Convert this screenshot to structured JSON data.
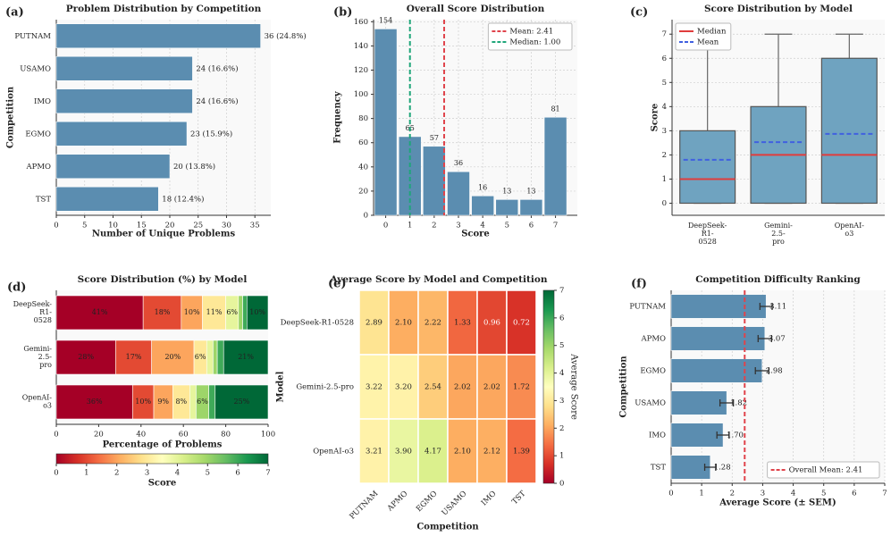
{
  "chart_data": [
    {
      "type": "bar",
      "orientation": "horizontal",
      "panel": "(a)",
      "title": "Problem Distribution by Competition",
      "xlabel": "Number of Unique Problems",
      "ylabel": "Competition",
      "categories": [
        "PUTNAM",
        "USAMO",
        "IMO",
        "EGMO",
        "APMO",
        "TST"
      ],
      "values": [
        36,
        24,
        24,
        23,
        20,
        18
      ],
      "value_labels": [
        "36 (24.8%)",
        "24 (16.6%)",
        "24 (16.6%)",
        "23 (15.9%)",
        "20 (13.8%)",
        "18 (12.4%)"
      ],
      "color": "#5b8db0",
      "xlim": [
        0,
        37.8
      ],
      "xticks": [
        0,
        5,
        10,
        15,
        20,
        25,
        30,
        35
      ],
      "grid": true
    },
    {
      "type": "bar",
      "orientation": "vertical",
      "panel": "(b)",
      "title": "Overall Score Distribution",
      "xlabel": "Score",
      "ylabel": "Frequency",
      "x": [
        0,
        1,
        2,
        3,
        4,
        5,
        6,
        7
      ],
      "values": [
        154,
        65,
        57,
        36,
        16,
        13,
        13,
        81
      ],
      "color": "#5b8db0",
      "xlim": [
        -0.5,
        7.9
      ],
      "ylim": [
        0,
        161.7
      ],
      "xticks": [
        0,
        1,
        2,
        3,
        4,
        5,
        6,
        7
      ],
      "yticks": [
        0,
        20,
        40,
        60,
        80,
        100,
        120,
        140,
        160
      ],
      "vlines": [
        {
          "name": "Mean: 2.41",
          "value": 2.41,
          "color": "#e0434b"
        },
        {
          "name": "Median: 1.00",
          "value": 1.0,
          "color": "#1fa67a"
        }
      ],
      "legend": "upper right",
      "grid": true
    },
    {
      "type": "box",
      "panel": "(c)",
      "title": "Score Distribution by Model",
      "ylabel": "Score",
      "categories": [
        "DeepSeek-R1-0528",
        "Gemini-2.5-pro",
        "OpenAI-o3"
      ],
      "stats": [
        {
          "min": 0,
          "q1": 0,
          "median": 1,
          "q3": 3,
          "max": 7,
          "mean": 1.8
        },
        {
          "min": 0,
          "q1": 0,
          "median": 2,
          "q3": 4,
          "max": 7,
          "mean": 2.53
        },
        {
          "min": 0,
          "q1": 0,
          "median": 2,
          "q3": 6,
          "max": 7,
          "mean": 2.87
        }
      ],
      "color": "#6fa3c0",
      "ylim": [
        -0.5,
        7.6
      ],
      "yticks": [
        0,
        1,
        2,
        3,
        4,
        5,
        6,
        7
      ],
      "legend_entries": [
        {
          "name": "Median",
          "color": "#e03c3c",
          "style": "solid"
        },
        {
          "name": "Mean",
          "color": "#4060e0",
          "style": "dashed"
        }
      ],
      "legend": "upper left",
      "grid": true
    },
    {
      "type": "stacked",
      "panel": "(d)",
      "title": "Score Distribution (%) by Model",
      "xlabel": "Percentage of Problems",
      "categories": [
        "DeepSeek-R1-0528",
        "Gemini-2.5-pro",
        "OpenAI-o3"
      ],
      "series": [
        {
          "color": "#a50026",
          "values": [
            41,
            28,
            36
          ],
          "value_labels": [
            "41%",
            "28%",
            "36%"
          ]
        },
        {
          "color": "#e34a33",
          "values": [
            18,
            17,
            10
          ],
          "value_labels": [
            "18%",
            "17%",
            "10%"
          ]
        },
        {
          "color": "#fca55d",
          "values": [
            10,
            20,
            9
          ],
          "value_labels": [
            "10%",
            "20%",
            "9%"
          ]
        },
        {
          "color": "#fee897",
          "values": [
            11,
            6,
            8
          ],
          "value_labels": [
            "11%",
            "6%",
            "8%"
          ]
        },
        {
          "color": "#e6f59d",
          "values": [
            6,
            3,
            3
          ],
          "value_labels": [
            "6%",
            null,
            null
          ]
        },
        {
          "color": "#9dd569",
          "values": [
            2,
            2,
            6
          ],
          "value_labels": [
            null,
            null,
            "6%"
          ]
        },
        {
          "color": "#3faa59",
          "values": [
            2,
            3,
            3
          ],
          "value_labels": [
            null,
            null,
            null
          ]
        },
        {
          "color": "#006837",
          "values": [
            10,
            21,
            25
          ],
          "value_labels": [
            "10%",
            "21%",
            "25%"
          ]
        }
      ],
      "xlim": [
        0,
        100
      ],
      "xticks": [
        0,
        20,
        40,
        60,
        80,
        100
      ],
      "colorbar": {
        "label": "Score",
        "lim": [
          0,
          7
        ],
        "ticks": [
          0,
          1,
          2,
          3,
          4,
          5,
          6,
          7
        ]
      },
      "cmap": [
        "#a50026",
        "#d73027",
        "#f46d43",
        "#fdae61",
        "#fee08b",
        "#ffffbf",
        "#d9ef8b",
        "#a6d96a",
        "#66bd63",
        "#1a9850",
        "#006837"
      ]
    },
    {
      "type": "heatmap",
      "panel": "(e)",
      "title": "Average Score by Model and Competition",
      "xlabel": "Competition",
      "ylabel": "Model",
      "rows": [
        "DeepSeek-R1-0528",
        "Gemini-2.5-pro",
        "OpenAI-o3"
      ],
      "columns": [
        "PUTNAM",
        "APMO",
        "EGMO",
        "USAMO",
        "IMO",
        "TST"
      ],
      "values": [
        [
          2.89,
          2.1,
          2.22,
          1.33,
          0.96,
          0.72
        ],
        [
          3.22,
          3.2,
          2.54,
          2.02,
          2.02,
          1.72
        ],
        [
          3.21,
          3.9,
          4.17,
          2.1,
          2.12,
          1.39
        ]
      ],
      "value_labels": [
        [
          "2.89",
          "2.10",
          "2.22",
          "1.33",
          "0.96",
          "0.72"
        ],
        [
          "3.22",
          "3.20",
          "2.54",
          "2.02",
          "2.02",
          "1.72"
        ],
        [
          "3.21",
          "3.90",
          "4.17",
          "2.10",
          "2.12",
          "1.39"
        ]
      ],
      "colorbar": {
        "label": "Average Score",
        "lim": [
          0,
          7
        ],
        "ticks": [
          0,
          1,
          2,
          3,
          4,
          5,
          6,
          7
        ]
      },
      "cmap": [
        "#a50026",
        "#d73027",
        "#f46d43",
        "#fdae61",
        "#fee08b",
        "#ffffbf",
        "#d9ef8b",
        "#a6d96a",
        "#66bd63",
        "#1a9850",
        "#006837"
      ]
    },
    {
      "type": "bar",
      "orientation": "horizontal",
      "panel": "(f)",
      "title": "Competition Difficulty Ranking",
      "xlabel": "Average Score (± SEM)",
      "ylabel": "Competition",
      "categories": [
        "PUTNAM",
        "APMO",
        "EGMO",
        "USAMO",
        "IMO",
        "TST"
      ],
      "values": [
        3.11,
        3.07,
        2.98,
        1.82,
        1.7,
        1.28
      ],
      "errors": [
        0.2,
        0.22,
        0.22,
        0.22,
        0.2,
        0.18
      ],
      "value_labels": [
        "3.11",
        "3.07",
        "2.98",
        "1.82",
        "1.70",
        "1.28"
      ],
      "color": "#5b8db0",
      "xlim": [
        0,
        7
      ],
      "xticks": [
        0,
        1,
        2,
        3,
        4,
        5,
        6,
        7
      ],
      "vlines": [
        {
          "name": "Overall Mean: 2.41",
          "value": 2.41,
          "color": "#e0434b"
        }
      ],
      "legend": "lower right",
      "grid": true
    }
  ]
}
